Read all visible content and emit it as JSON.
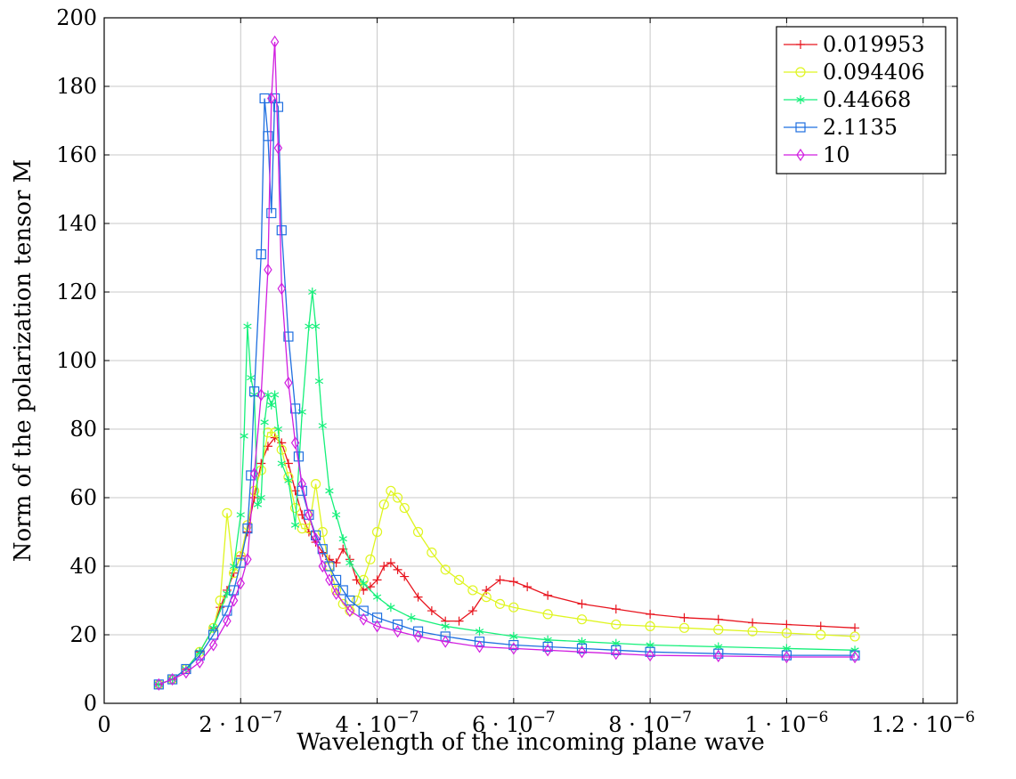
{
  "chart_data": {
    "type": "line",
    "title": "",
    "xlabel": "Wavelength of the incoming plane wave",
    "ylabel": "Norm of the polarization tensor M",
    "xlim": [
      0,
      1.25e-06
    ],
    "ylim": [
      0,
      200
    ],
    "grid": true,
    "legend_position": "top-right",
    "x_ticks": [
      {
        "value": 0,
        "mantissa": "0",
        "exponent": ""
      },
      {
        "value": 2e-07,
        "mantissa": "2 · 10",
        "exponent": "−7"
      },
      {
        "value": 4e-07,
        "mantissa": "4 · 10",
        "exponent": "−7"
      },
      {
        "value": 6e-07,
        "mantissa": "6 · 10",
        "exponent": "−7"
      },
      {
        "value": 8e-07,
        "mantissa": "8 · 10",
        "exponent": "−7"
      },
      {
        "value": 1e-06,
        "mantissa": "1 · 10",
        "exponent": "−6"
      },
      {
        "value": 1.2e-06,
        "mantissa": "1.2 · 10",
        "exponent": "−6"
      }
    ],
    "y_ticks": [
      0,
      20,
      40,
      60,
      80,
      100,
      120,
      140,
      160,
      180,
      200
    ],
    "series": [
      {
        "name": "0.019953",
        "color": "#e8141e",
        "marker": "plus",
        "x": [
          8e-08,
          1e-07,
          1.2e-07,
          1.4e-07,
          1.6e-07,
          1.7e-07,
          1.8e-07,
          1.9e-07,
          2e-07,
          2.1e-07,
          2.2e-07,
          2.3e-07,
          2.4e-07,
          2.5e-07,
          2.6e-07,
          2.7e-07,
          2.8e-07,
          2.9e-07,
          3e-07,
          3.1e-07,
          3.2e-07,
          3.3e-07,
          3.4e-07,
          3.5e-07,
          3.6e-07,
          3.7e-07,
          3.8e-07,
          3.9e-07,
          4e-07,
          4.1e-07,
          4.2e-07,
          4.3e-07,
          4.4e-07,
          4.6e-07,
          4.8e-07,
          5e-07,
          5.2e-07,
          5.4e-07,
          5.6e-07,
          5.8e-07,
          6e-07,
          6.2e-07,
          6.5e-07,
          7e-07,
          7.5e-07,
          8e-07,
          8.5e-07,
          9e-07,
          9.5e-07,
          1e-06,
          1.05e-06,
          1.1e-06
        ],
        "y": [
          5.5,
          7,
          10,
          15,
          22,
          28,
          33,
          38,
          43,
          50,
          60,
          70,
          75,
          77.5,
          76,
          70,
          62,
          55,
          50,
          47,
          44,
          42,
          41,
          45,
          42,
          36,
          33,
          34,
          36,
          40,
          41,
          39,
          37,
          31,
          27,
          24,
          24,
          27,
          33,
          36,
          35.5,
          34,
          31.5,
          29,
          27.5,
          26,
          25,
          24.5,
          23.5,
          23,
          22.5,
          22
        ]
      },
      {
        "name": "0.094406",
        "color": "#dff520",
        "marker": "circle",
        "x": [
          8e-08,
          1e-07,
          1.2e-07,
          1.4e-07,
          1.6e-07,
          1.7e-07,
          1.8e-07,
          1.9e-07,
          2e-07,
          2.1e-07,
          2.2e-07,
          2.3e-07,
          2.4e-07,
          2.5e-07,
          2.6e-07,
          2.7e-07,
          2.8e-07,
          2.9e-07,
          3e-07,
          3.1e-07,
          3.2e-07,
          3.3e-07,
          3.4e-07,
          3.5e-07,
          3.6e-07,
          3.7e-07,
          3.8e-07,
          3.9e-07,
          4e-07,
          4.1e-07,
          4.2e-07,
          4.3e-07,
          4.4e-07,
          4.6e-07,
          4.8e-07,
          5e-07,
          5.2e-07,
          5.4e-07,
          5.6e-07,
          5.8e-07,
          6e-07,
          6.5e-07,
          7e-07,
          7.5e-07,
          8e-07,
          8.5e-07,
          9e-07,
          9.5e-07,
          1e-06,
          1.05e-06,
          1.1e-06
        ],
        "y": [
          5.5,
          7,
          10,
          15,
          22,
          30,
          55.5,
          38,
          43,
          52,
          62,
          68,
          79,
          79,
          74,
          66,
          57,
          51,
          51,
          64,
          50,
          40,
          33,
          29,
          27,
          30,
          36,
          42,
          50,
          58,
          62,
          60,
          57,
          50,
          44,
          39,
          36,
          33,
          31,
          29,
          28,
          26,
          24.5,
          23,
          22.5,
          22,
          21.5,
          21,
          20.5,
          20,
          19.5
        ]
      },
      {
        "name": "0.44668",
        "color": "#15f07a",
        "marker": "asterisk",
        "x": [
          8e-08,
          1e-07,
          1.2e-07,
          1.4e-07,
          1.6e-07,
          1.8e-07,
          1.9e-07,
          2e-07,
          2.05e-07,
          2.1e-07,
          2.15e-07,
          2.2e-07,
          2.25e-07,
          2.3e-07,
          2.35e-07,
          2.4e-07,
          2.45e-07,
          2.5e-07,
          2.55e-07,
          2.6e-07,
          2.7e-07,
          2.8e-07,
          2.9e-07,
          3e-07,
          3.05e-07,
          3.1e-07,
          3.15e-07,
          3.2e-07,
          3.3e-07,
          3.4e-07,
          3.5e-07,
          3.6e-07,
          3.8e-07,
          4e-07,
          4.2e-07,
          4.5e-07,
          5e-07,
          5.5e-07,
          6e-07,
          6.5e-07,
          7e-07,
          7.5e-07,
          8e-07,
          9e-07,
          1e-06,
          1.1e-06
        ],
        "y": [
          5.5,
          7,
          10,
          15,
          22,
          32,
          40,
          55,
          78,
          110,
          95,
          90,
          58,
          60,
          82,
          90,
          87,
          90,
          80,
          70,
          65,
          52,
          85,
          110,
          120,
          110,
          94,
          81,
          62,
          55,
          48,
          41,
          35,
          31,
          28,
          25,
          22.5,
          21,
          19.5,
          18.5,
          18,
          17.5,
          17,
          16.5,
          16,
          15.5
        ]
      },
      {
        "name": "2.1135",
        "color": "#1f6fe0",
        "marker": "square",
        "x": [
          8e-08,
          1e-07,
          1.2e-07,
          1.4e-07,
          1.6e-07,
          1.8e-07,
          1.9e-07,
          2e-07,
          2.1e-07,
          2.15e-07,
          2.2e-07,
          2.3e-07,
          2.35e-07,
          2.4e-07,
          2.45e-07,
          2.5e-07,
          2.55e-07,
          2.6e-07,
          2.7e-07,
          2.8e-07,
          2.85e-07,
          2.9e-07,
          3e-07,
          3.1e-07,
          3.2e-07,
          3.3e-07,
          3.4e-07,
          3.5e-07,
          3.6e-07,
          3.8e-07,
          4e-07,
          4.3e-07,
          4.6e-07,
          5e-07,
          5.5e-07,
          6e-07,
          6.5e-07,
          7e-07,
          7.5e-07,
          8e-07,
          9e-07,
          1e-06,
          1.1e-06
        ],
        "y": [
          5.5,
          7,
          10,
          14,
          20,
          27,
          33,
          41,
          51,
          66.5,
          91,
          131,
          176.5,
          165.5,
          143,
          176.5,
          174,
          138,
          107,
          86,
          72,
          62,
          55,
          49,
          45,
          40,
          36,
          33,
          30,
          27,
          25,
          23,
          21,
          19.5,
          18,
          17,
          16.5,
          16,
          15.5,
          15,
          14.5,
          14,
          14
        ]
      },
      {
        "name": "10",
        "color": "#d11fe0",
        "marker": "diamond",
        "x": [
          8e-08,
          1e-07,
          1.2e-07,
          1.4e-07,
          1.6e-07,
          1.8e-07,
          1.9e-07,
          2e-07,
          2.1e-07,
          2.2e-07,
          2.3e-07,
          2.4e-07,
          2.45e-07,
          2.5e-07,
          2.55e-07,
          2.6e-07,
          2.7e-07,
          2.8e-07,
          2.9e-07,
          3e-07,
          3.1e-07,
          3.2e-07,
          3.3e-07,
          3.4e-07,
          3.6e-07,
          3.8e-07,
          4e-07,
          4.3e-07,
          4.6e-07,
          5e-07,
          5.5e-07,
          6e-07,
          6.5e-07,
          7e-07,
          7.5e-07,
          8e-07,
          9e-07,
          1e-06,
          1.1e-06
        ],
        "y": [
          5.5,
          7,
          9,
          12,
          17,
          24,
          30,
          35,
          42,
          67,
          90,
          126.5,
          176.5,
          193,
          162,
          121,
          93.5,
          76,
          64,
          55,
          48,
          40,
          36,
          32,
          27,
          24.5,
          22.5,
          21,
          19.5,
          18,
          16.5,
          16,
          15.5,
          15,
          14.5,
          14,
          13.8,
          13.5,
          13.5
        ]
      }
    ]
  }
}
